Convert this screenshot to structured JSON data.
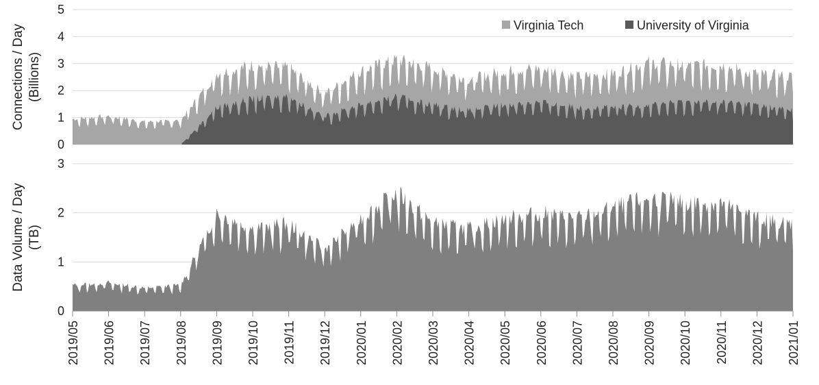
{
  "chart_data": [
    {
      "type": "area",
      "ylabel_line1": "Connections / Day",
      "ylabel_line2": "(Billions)",
      "ylim": [
        0,
        5
      ],
      "yticks": [
        0,
        1,
        2,
        3,
        4,
        5
      ],
      "grid": true,
      "legend_position": "top-right",
      "x": [
        "2019/05",
        "2019/06",
        "2019/07",
        "2019/08",
        "2019/09",
        "2019/10",
        "2019/11",
        "2019/12",
        "2020/01",
        "2020/02",
        "2020/03",
        "2020/04",
        "2020/05",
        "2020/06",
        "2020/07",
        "2020/08",
        "2020/09",
        "2020/10",
        "2020/11",
        "2020/12",
        "2021/01"
      ],
      "series": [
        {
          "name": "Virginia Tech",
          "color": "#a6a6a6",
          "values": [
            0.9,
            1.0,
            0.8,
            0.85,
            2.5,
            2.8,
            2.7,
            1.8,
            2.6,
            3.0,
            2.7,
            2.3,
            2.6,
            2.7,
            2.4,
            2.5,
            2.9,
            2.8,
            2.8,
            2.5,
            2.4
          ]
        },
        {
          "name": "University of Virginia",
          "color": "#595959",
          "values": [
            0.0,
            0.0,
            0.0,
            0.0,
            1.3,
            1.6,
            1.7,
            1.0,
            1.4,
            1.7,
            1.4,
            1.2,
            1.4,
            1.5,
            1.3,
            1.3,
            1.4,
            1.5,
            1.5,
            1.4,
            1.2
          ]
        }
      ]
    },
    {
      "type": "area",
      "ylabel_line1": "Data Volume / Day",
      "ylabel_line2": "(TB)",
      "ylim": [
        0,
        3
      ],
      "yticks": [
        0,
        1,
        2,
        3
      ],
      "grid": true,
      "x": [
        "2019/05",
        "2019/06",
        "2019/07",
        "2019/08",
        "2019/09",
        "2019/10",
        "2019/11",
        "2019/12",
        "2020/01",
        "2020/02",
        "2020/03",
        "2020/04",
        "2020/05",
        "2020/06",
        "2020/07",
        "2020/08",
        "2020/09",
        "2020/10",
        "2020/11",
        "2020/12",
        "2021/01"
      ],
      "series": [
        {
          "color": "#808080",
          "values": [
            0.5,
            0.55,
            0.45,
            0.5,
            1.9,
            1.6,
            1.7,
            1.2,
            1.8,
            2.3,
            1.7,
            1.6,
            1.8,
            1.9,
            1.8,
            2.0,
            2.2,
            2.1,
            2.1,
            1.8,
            1.7
          ]
        }
      ]
    }
  ],
  "xtick_labels": [
    "2019/05",
    "2019/06",
    "2019/07",
    "2019/08",
    "2019/09",
    "2019/10",
    "2019/11",
    "2019/12",
    "2020/01",
    "2020/02",
    "2020/03",
    "2020/04",
    "2020/05",
    "2020/06",
    "2020/07",
    "2020/08",
    "2020/09",
    "2020/10",
    "2020/11",
    "2020/12",
    "2021/01"
  ]
}
